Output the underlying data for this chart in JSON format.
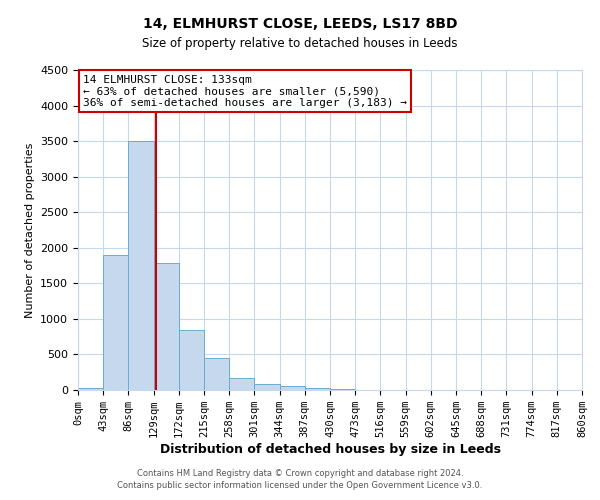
{
  "title": "14, ELMHURST CLOSE, LEEDS, LS17 8BD",
  "subtitle": "Size of property relative to detached houses in Leeds",
  "xlabel": "Distribution of detached houses by size in Leeds",
  "ylabel": "Number of detached properties",
  "bin_edges": [
    0,
    43,
    86,
    129,
    172,
    215,
    258,
    301,
    344,
    387,
    430,
    473,
    516,
    559,
    602,
    645,
    688,
    731,
    774,
    817,
    860
  ],
  "bin_labels": [
    "0sqm",
    "43sqm",
    "86sqm",
    "129sqm",
    "172sqm",
    "215sqm",
    "258sqm",
    "301sqm",
    "344sqm",
    "387sqm",
    "430sqm",
    "473sqm",
    "516sqm",
    "559sqm",
    "602sqm",
    "645sqm",
    "688sqm",
    "731sqm",
    "774sqm",
    "817sqm",
    "860sqm"
  ],
  "bar_heights": [
    30,
    1900,
    3500,
    1780,
    850,
    450,
    175,
    90,
    50,
    30,
    10,
    0,
    0,
    0,
    0,
    0,
    0,
    0,
    0,
    0
  ],
  "bar_color": "#c5d8ee",
  "bar_edge_color": "#6aabd2",
  "property_line_x": 133,
  "ylim": [
    0,
    4500
  ],
  "yticks": [
    0,
    500,
    1000,
    1500,
    2000,
    2500,
    3000,
    3500,
    4000,
    4500
  ],
  "annotation_line1": "14 ELMHURST CLOSE: 133sqm",
  "annotation_line2": "← 63% of detached houses are smaller (5,590)",
  "annotation_line3": "36% of semi-detached houses are larger (3,183) →",
  "annotation_box_color": "#ffffff",
  "annotation_box_edge_color": "#cc0000",
  "red_line_color": "#cc0000",
  "footer_line1": "Contains HM Land Registry data © Crown copyright and database right 2024.",
  "footer_line2": "Contains public sector information licensed under the Open Government Licence v3.0.",
  "background_color": "#ffffff",
  "grid_color": "#c8d8eb"
}
